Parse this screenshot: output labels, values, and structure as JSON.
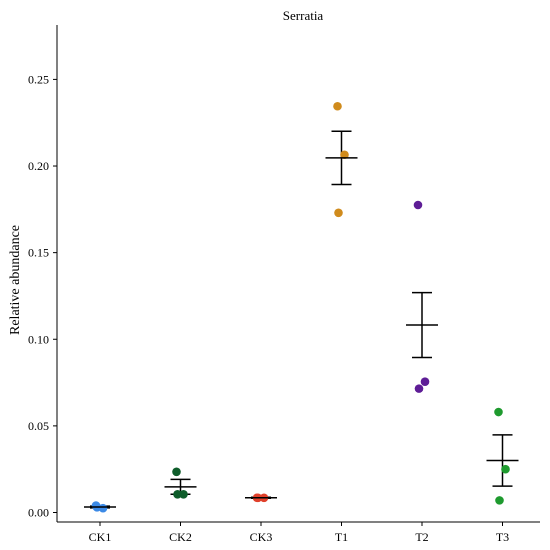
{
  "chart_data": {
    "type": "scatter",
    "title": "Serratia",
    "xlabel": "",
    "ylabel": "Relative abundance",
    "ylim": [
      -0.003,
      0.28
    ],
    "yticks": [
      0.0,
      0.05,
      0.1,
      0.15,
      0.2,
      0.25
    ],
    "ytick_labels": [
      "0.00",
      "0.05",
      "0.10",
      "0.15",
      "0.20",
      "0.25"
    ],
    "categories": [
      "CK1",
      "CK2",
      "CK3",
      "T1",
      "T2",
      "T3"
    ],
    "colors": [
      "#3C8AE6",
      "#0E5C2A",
      "#E0402B",
      "#D08B1C",
      "#5E1D96",
      "#1E9A2E"
    ],
    "points": [
      [
        0.004,
        0.0025,
        0.003
      ],
      [
        0.0235,
        0.0105,
        0.0105
      ],
      [
        0.0085,
        0.0085,
        0.0085
      ],
      [
        0.2345,
        0.2065,
        0.173
      ],
      [
        0.1775,
        0.0755,
        0.0715
      ],
      [
        0.058,
        0.025,
        0.007
      ]
    ],
    "mean": [
      0.0032,
      0.0148,
      0.0085,
      0.2047,
      0.1082,
      0.03
    ],
    "se": [
      0.0005,
      0.0043,
      0.0003,
      0.0154,
      0.0187,
      0.0148
    ],
    "grid": false,
    "legend": "none"
  }
}
